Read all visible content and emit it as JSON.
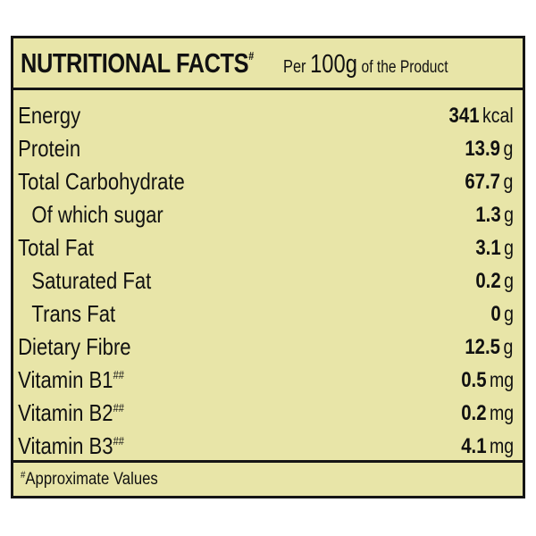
{
  "header": {
    "title": "NUTRITIONAL FACTS",
    "title_mark": "#",
    "per_label": "Per",
    "amount": "100g",
    "suffix": "of the Product"
  },
  "nutrients": [
    {
      "name": "Energy",
      "mark": "",
      "value": "341",
      "unit": "kcal",
      "indent": false
    },
    {
      "name": "Protein",
      "mark": "",
      "value": "13.9",
      "unit": "g",
      "indent": false
    },
    {
      "name": "Total Carbohydrate",
      "mark": "",
      "value": "67.7",
      "unit": "g",
      "indent": false
    },
    {
      "name": "Of which sugar",
      "mark": "",
      "value": "1.3",
      "unit": "g",
      "indent": true
    },
    {
      "name": "Total Fat",
      "mark": "",
      "value": "3.1",
      "unit": "g",
      "indent": false
    },
    {
      "name": "Saturated Fat",
      "mark": "",
      "value": "0.2",
      "unit": "g",
      "indent": true
    },
    {
      "name": "Trans Fat",
      "mark": "",
      "value": "0",
      "unit": "g",
      "indent": true
    },
    {
      "name": "Dietary Fibre",
      "mark": "",
      "value": "12.5",
      "unit": "g",
      "indent": false
    },
    {
      "name": "Vitamin B1",
      "mark": "##",
      "value": "0.5",
      "unit": "mg",
      "indent": false
    },
    {
      "name": "Vitamin B2",
      "mark": "##",
      "value": "0.2",
      "unit": "mg",
      "indent": false
    },
    {
      "name": "Vitamin B3",
      "mark": "##",
      "value": "4.1",
      "unit": "mg",
      "indent": false
    }
  ],
  "footer": {
    "mark": "#",
    "note": "Approximate Values"
  },
  "colors": {
    "background": "#e8e5a8",
    "border": "#151515"
  }
}
